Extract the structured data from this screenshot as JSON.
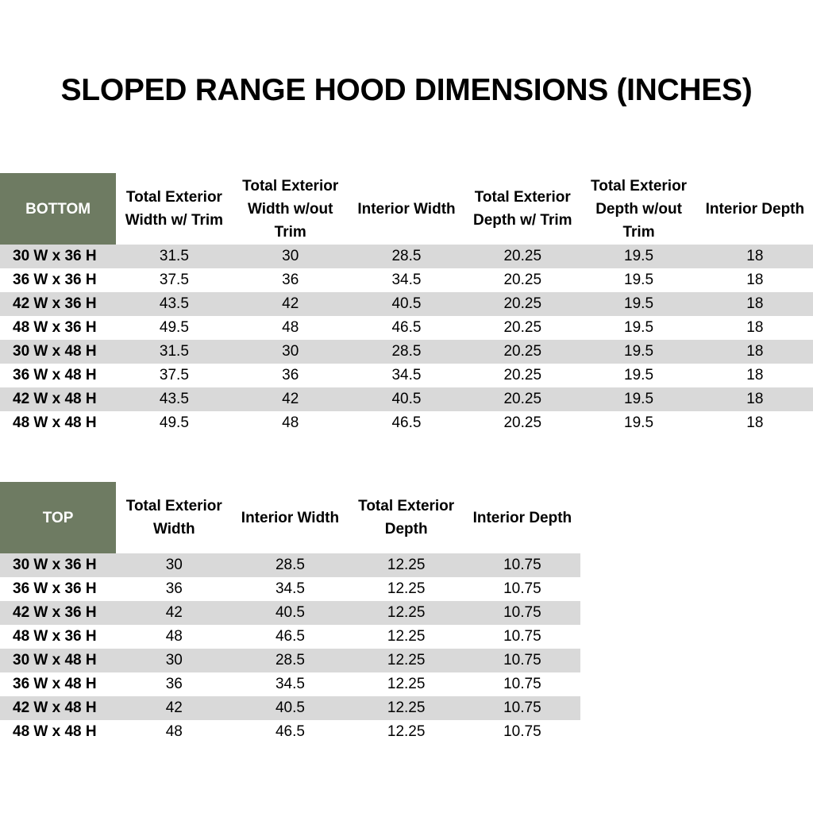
{
  "title": "SLOPED RANGE HOOD DIMENSIONS (INCHES)",
  "colors": {
    "header_green": "#6e7b62",
    "stripe_gray": "#d9d9d9"
  },
  "bottom": {
    "label": "BOTTOM",
    "headers": [
      "Total Exterior Width w/ Trim",
      "Total Exterior Width w/out Trim",
      "Interior Width",
      "Total Exterior Depth w/ Trim",
      "Total Exterior Depth w/out Trim",
      "Interior Depth"
    ],
    "rows": [
      [
        "30 W x 36 H",
        "31.5",
        "30",
        "28.5",
        "20.25",
        "19.5",
        "18"
      ],
      [
        "36 W x 36 H",
        "37.5",
        "36",
        "34.5",
        "20.25",
        "19.5",
        "18"
      ],
      [
        "42 W x 36 H",
        "43.5",
        "42",
        "40.5",
        "20.25",
        "19.5",
        "18"
      ],
      [
        "48 W x 36 H",
        "49.5",
        "48",
        "46.5",
        "20.25",
        "19.5",
        "18"
      ],
      [
        "30 W x 48 H",
        "31.5",
        "30",
        "28.5",
        "20.25",
        "19.5",
        "18"
      ],
      [
        "36 W x 48 H",
        "37.5",
        "36",
        "34.5",
        "20.25",
        "19.5",
        "18"
      ],
      [
        "42 W x 48 H",
        "43.5",
        "42",
        "40.5",
        "20.25",
        "19.5",
        "18"
      ],
      [
        "48 W x 48 H",
        "49.5",
        "48",
        "46.5",
        "20.25",
        "19.5",
        "18"
      ]
    ]
  },
  "top": {
    "label": "TOP",
    "headers": [
      "Total Exterior Width",
      "Interior Width",
      "Total Exterior Depth",
      "Interior Depth"
    ],
    "rows": [
      [
        "30 W x 36 H",
        "30",
        "28.5",
        "12.25",
        "10.75"
      ],
      [
        "36 W x 36 H",
        "36",
        "34.5",
        "12.25",
        "10.75"
      ],
      [
        "42 W x 36 H",
        "42",
        "40.5",
        "12.25",
        "10.75"
      ],
      [
        "48 W x 36 H",
        "48",
        "46.5",
        "12.25",
        "10.75"
      ],
      [
        "30 W x 48 H",
        "30",
        "28.5",
        "12.25",
        "10.75"
      ],
      [
        "36 W x 48 H",
        "36",
        "34.5",
        "12.25",
        "10.75"
      ],
      [
        "42 W x 48 H",
        "42",
        "40.5",
        "12.25",
        "10.75"
      ],
      [
        "48 W x 48 H",
        "48",
        "46.5",
        "12.25",
        "10.75"
      ]
    ]
  }
}
